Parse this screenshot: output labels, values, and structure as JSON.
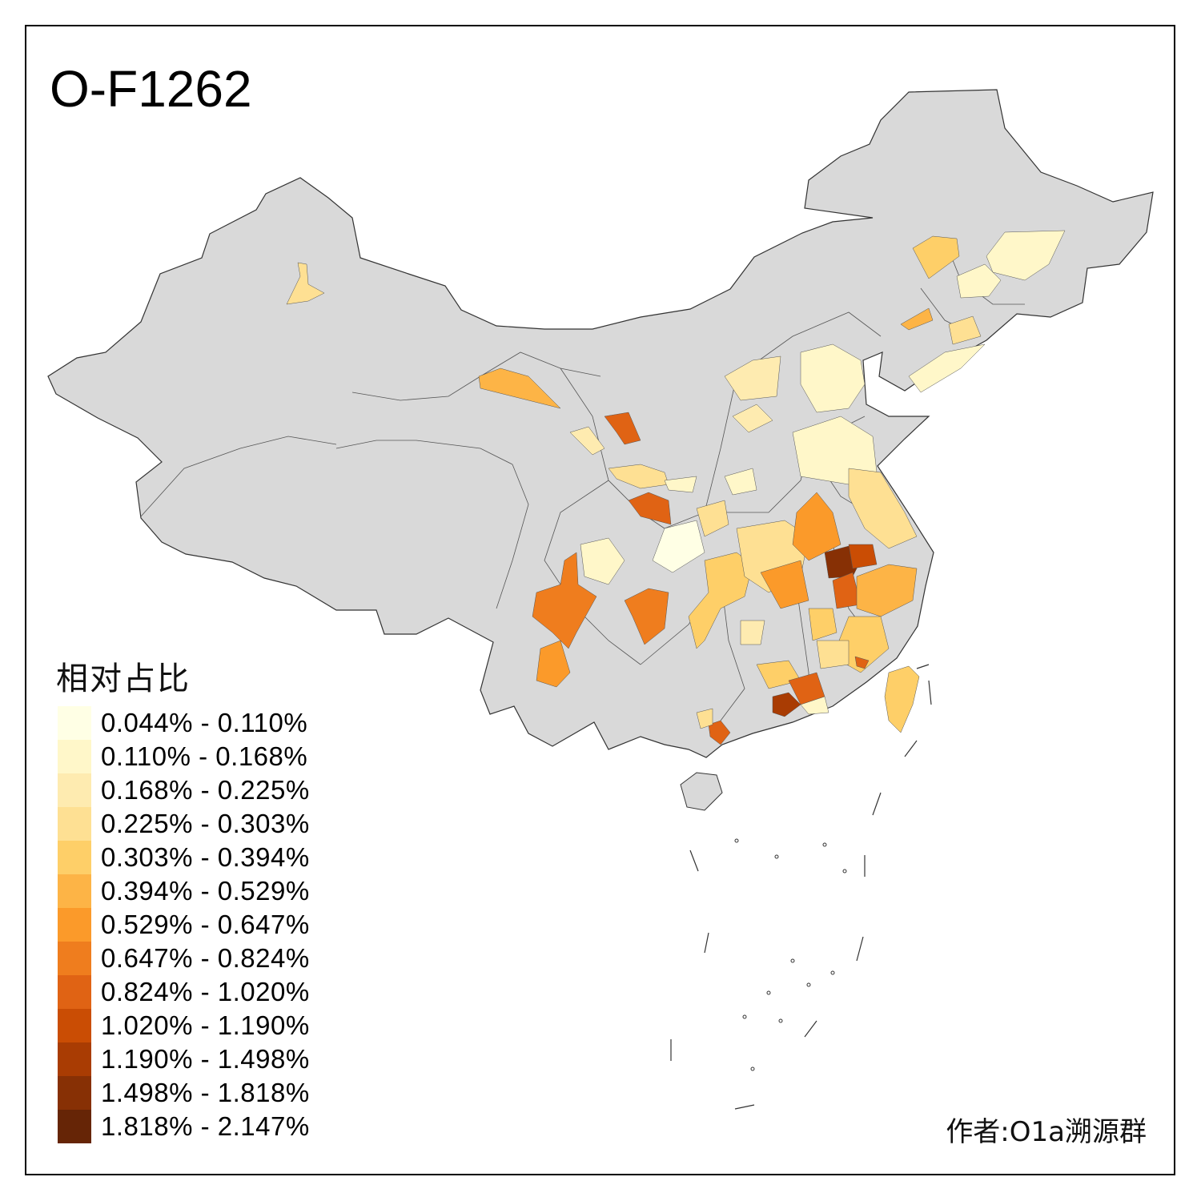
{
  "title": "O-F1262",
  "legend": {
    "title": "相对占比",
    "items": [
      {
        "label": "0.044% - 0.110%",
        "color": "#FFFFE5"
      },
      {
        "label": "0.110% - 0.168%",
        "color": "#FFF7C9"
      },
      {
        "label": "0.168% - 0.225%",
        "color": "#FEEBB0"
      },
      {
        "label": "0.225% - 0.303%",
        "color": "#FEE093"
      },
      {
        "label": "0.303% - 0.394%",
        "color": "#FECF68"
      },
      {
        "label": "0.394% - 0.529%",
        "color": "#FDB446"
      },
      {
        "label": "0.529% - 0.647%",
        "color": "#FB9A2A"
      },
      {
        "label": "0.647% - 0.824%",
        "color": "#EF7D1E"
      },
      {
        "label": "0.824% - 1.020%",
        "color": "#E06314"
      },
      {
        "label": "1.020% - 1.190%",
        "color": "#CA4D04"
      },
      {
        "label": "1.190% - 1.498%",
        "color": "#A93C03"
      },
      {
        "label": "1.498% - 1.818%",
        "color": "#873005"
      },
      {
        "label": "1.818% - 2.147%",
        "color": "#662506"
      }
    ]
  },
  "map": {
    "no_data_color": "#D9D9D9",
    "border_color": "#555555"
  },
  "author": "作者:O1a溯源群"
}
